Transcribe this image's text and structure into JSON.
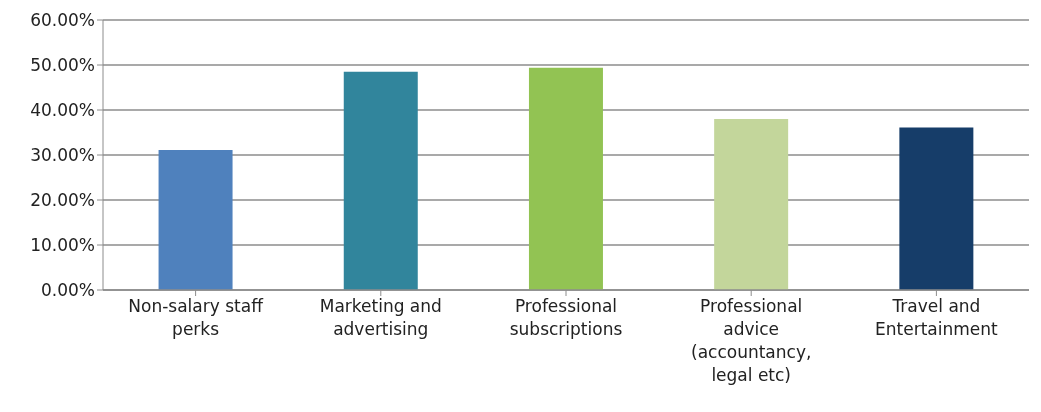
{
  "chart_data": {
    "type": "bar",
    "categories": [
      "Non-salary staff perks",
      "Marketing and advertising",
      "Professional subscriptions",
      "Professional advice (accountancy, legal etc)",
      "Travel and Entertainment"
    ],
    "values": [
      31.1,
      48.5,
      49.4,
      38.0,
      36.1
    ],
    "colors": [
      "#4f81bd",
      "#31859c",
      "#92c353",
      "#c3d69b",
      "#163d69"
    ],
    "ylim": [
      0,
      60
    ],
    "yticks": [
      {
        "value": 0,
        "label": "0.00%"
      },
      {
        "value": 10,
        "label": "10.00%"
      },
      {
        "value": 20,
        "label": "20.00%"
      },
      {
        "value": 30,
        "label": "30.00%"
      },
      {
        "value": 40,
        "label": "40.00%"
      },
      {
        "value": 50,
        "label": "50.00%"
      },
      {
        "value": 60,
        "label": "60.00%"
      }
    ],
    "grid": "y"
  }
}
